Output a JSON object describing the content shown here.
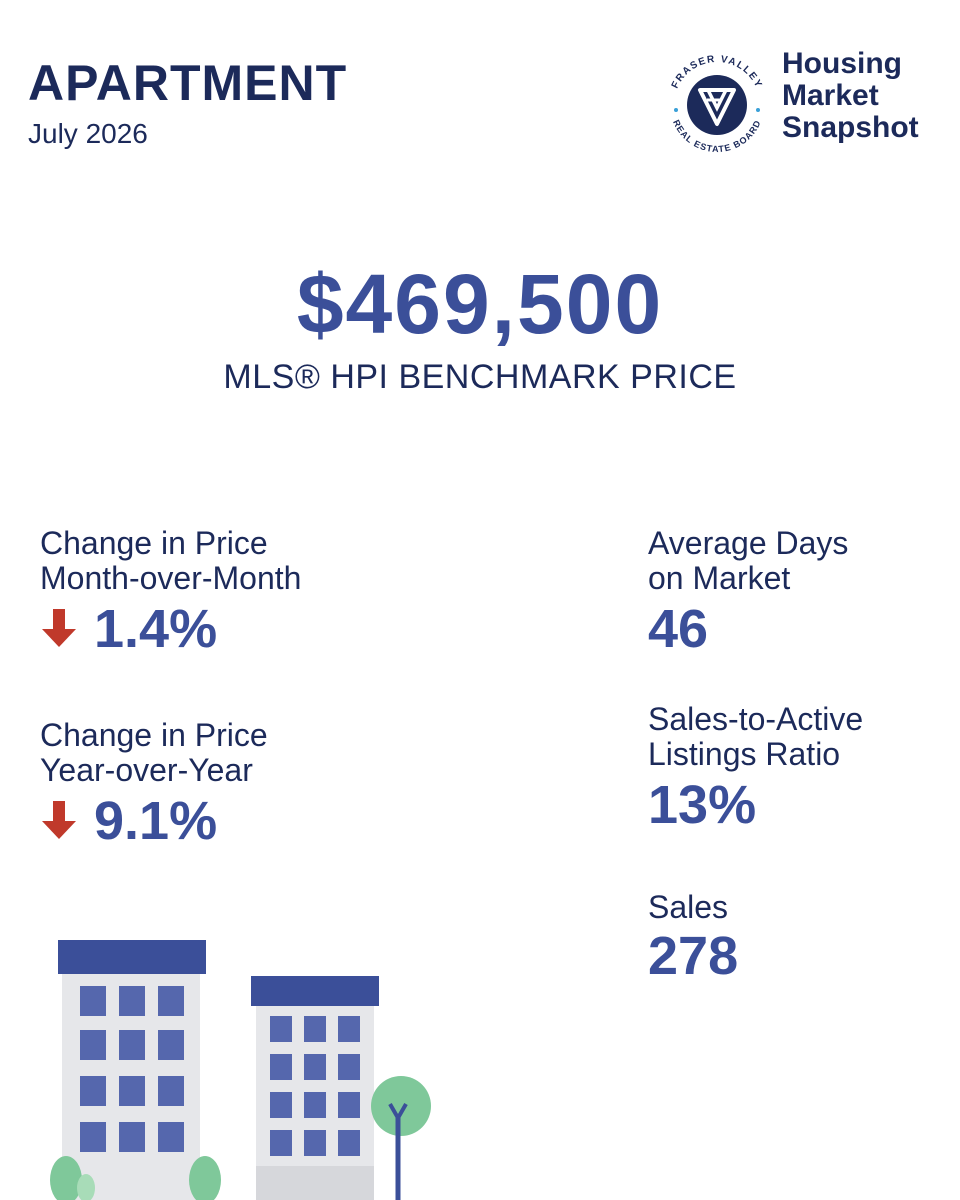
{
  "header": {
    "title": "APARTMENT",
    "date": "July 2026"
  },
  "logo": {
    "ring_text_top": "FRASER VALLEY",
    "ring_text_bottom": "REAL ESTATE BOARD",
    "snapshot_lines": [
      "Housing",
      "Market",
      "Snapshot"
    ]
  },
  "benchmark": {
    "price": "$469,500",
    "label": "MLS® HPI BENCHMARK PRICE"
  },
  "stats": {
    "mom": {
      "label_line1": "Change in Price",
      "label_line2": "Month-over-Month",
      "value": "1.4%",
      "direction": "down"
    },
    "yoy": {
      "label_line1": "Change in Price",
      "label_line2": "Year-over-Year",
      "value": "9.1%",
      "direction": "down"
    },
    "days_on_market": {
      "label_line1": "Average Days",
      "label_line2": "on Market",
      "value": "46"
    },
    "sales_to_active": {
      "label_line1": "Sales-to-Active",
      "label_line2": "Listings Ratio",
      "value": "13%"
    },
    "sales": {
      "label": "Sales",
      "value": "278"
    }
  },
  "colors": {
    "navy": "#1c2a5a",
    "accent_blue": "#3b4f99",
    "down_red": "#c0392b",
    "tree_green": "#7fc89a",
    "building_gray": "#e6e7ea"
  },
  "icons": {
    "arrow": "arrow-down-icon",
    "logo": "fraser-valley-logo",
    "illustration": "apartment-buildings-illustration"
  }
}
